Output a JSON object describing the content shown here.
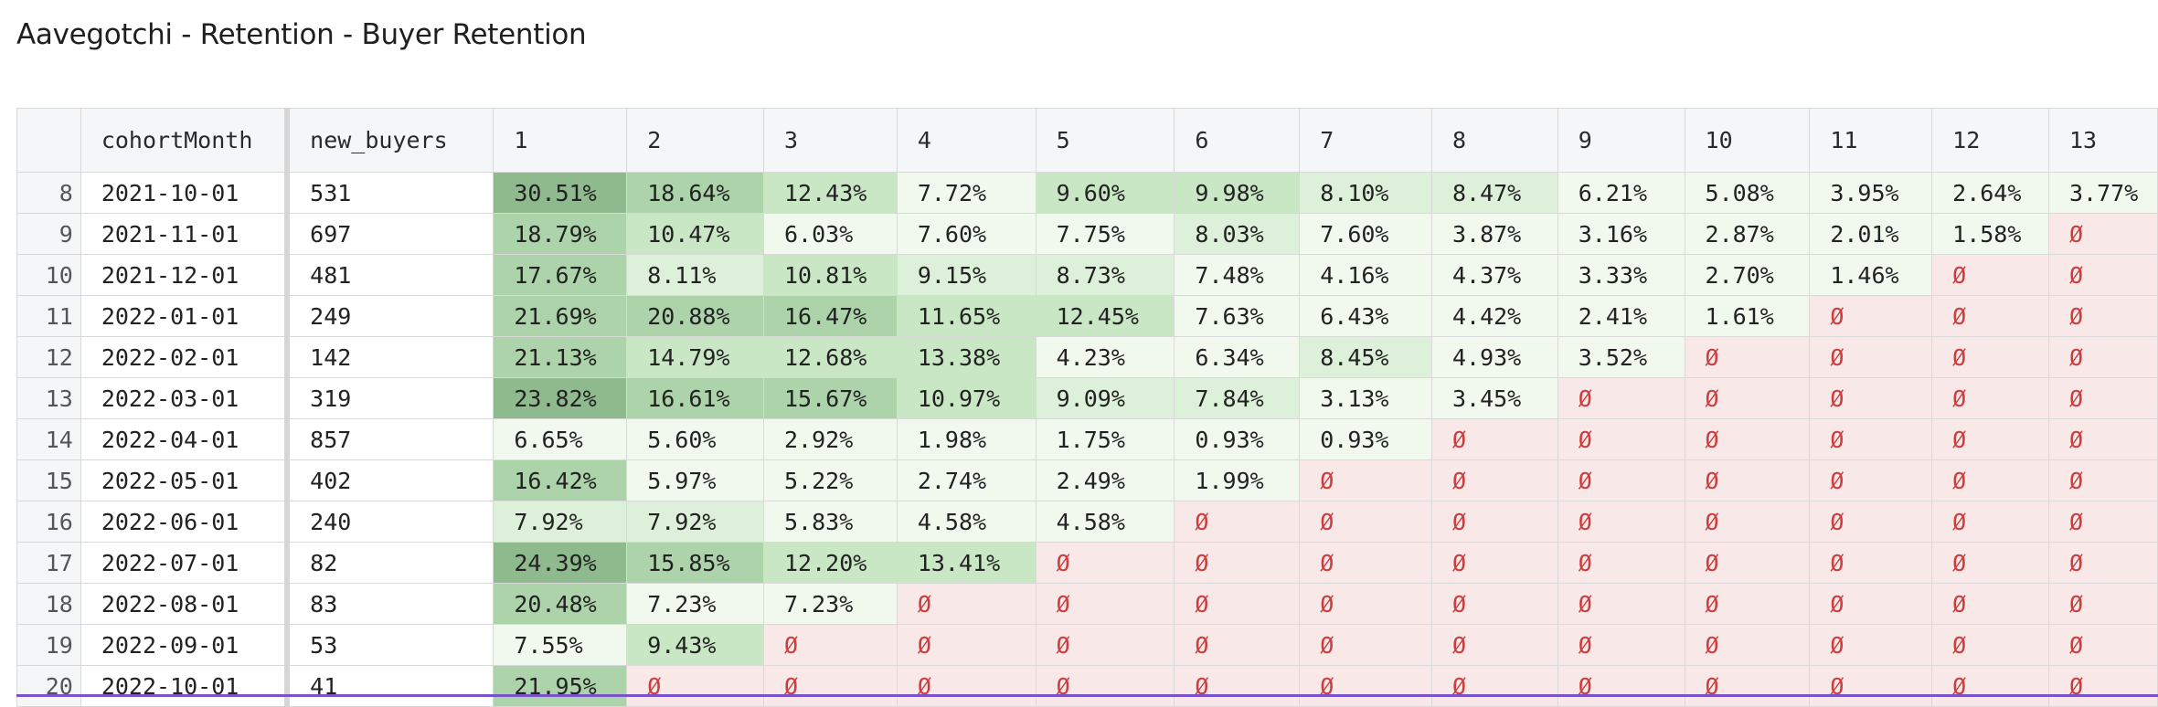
{
  "title": "Aavegotchi - Retention - Buyer Retention",
  "columns": [
    "",
    "cohortMonth",
    "new_buyers",
    "1",
    "2",
    "3",
    "4",
    "5",
    "6",
    "7",
    "8",
    "9",
    "10",
    "11",
    "12",
    "13"
  ],
  "null_symbol": "Ø",
  "rows": [
    {
      "n": "8",
      "month": "2021-10-01",
      "buyers": "531",
      "vals": [
        "30.51%",
        "18.64%",
        "12.43%",
        "7.72%",
        "9.60%",
        "9.98%",
        "8.10%",
        "8.47%",
        "6.21%",
        "5.08%",
        "3.95%",
        "2.64%",
        "3.77%"
      ]
    },
    {
      "n": "9",
      "month": "2021-11-01",
      "buyers": "697",
      "vals": [
        "18.79%",
        "10.47%",
        "6.03%",
        "7.60%",
        "7.75%",
        "8.03%",
        "7.60%",
        "3.87%",
        "3.16%",
        "2.87%",
        "2.01%",
        "1.58%",
        null
      ]
    },
    {
      "n": "10",
      "month": "2021-12-01",
      "buyers": "481",
      "vals": [
        "17.67%",
        "8.11%",
        "10.81%",
        "9.15%",
        "8.73%",
        "7.48%",
        "4.16%",
        "4.37%",
        "3.33%",
        "2.70%",
        "1.46%",
        null,
        null
      ]
    },
    {
      "n": "11",
      "month": "2022-01-01",
      "buyers": "249",
      "vals": [
        "21.69%",
        "20.88%",
        "16.47%",
        "11.65%",
        "12.45%",
        "7.63%",
        "6.43%",
        "4.42%",
        "2.41%",
        "1.61%",
        null,
        null,
        null
      ]
    },
    {
      "n": "12",
      "month": "2022-02-01",
      "buyers": "142",
      "vals": [
        "21.13%",
        "14.79%",
        "12.68%",
        "13.38%",
        "4.23%",
        "6.34%",
        "8.45%",
        "4.93%",
        "3.52%",
        null,
        null,
        null,
        null
      ]
    },
    {
      "n": "13",
      "month": "2022-03-01",
      "buyers": "319",
      "vals": [
        "23.82%",
        "16.61%",
        "15.67%",
        "10.97%",
        "9.09%",
        "7.84%",
        "3.13%",
        "3.45%",
        null,
        null,
        null,
        null,
        null
      ]
    },
    {
      "n": "14",
      "month": "2022-04-01",
      "buyers": "857",
      "vals": [
        "6.65%",
        "5.60%",
        "2.92%",
        "1.98%",
        "1.75%",
        "0.93%",
        "0.93%",
        null,
        null,
        null,
        null,
        null,
        null
      ]
    },
    {
      "n": "15",
      "month": "2022-05-01",
      "buyers": "402",
      "vals": [
        "16.42%",
        "5.97%",
        "5.22%",
        "2.74%",
        "2.49%",
        "1.99%",
        null,
        null,
        null,
        null,
        null,
        null,
        null
      ]
    },
    {
      "n": "16",
      "month": "2022-06-01",
      "buyers": "240",
      "vals": [
        "7.92%",
        "7.92%",
        "5.83%",
        "4.58%",
        "4.58%",
        null,
        null,
        null,
        null,
        null,
        null,
        null,
        null
      ]
    },
    {
      "n": "17",
      "month": "2022-07-01",
      "buyers": "82",
      "vals": [
        "24.39%",
        "15.85%",
        "12.20%",
        "13.41%",
        null,
        null,
        null,
        null,
        null,
        null,
        null,
        null,
        null
      ]
    },
    {
      "n": "18",
      "month": "2022-08-01",
      "buyers": "83",
      "vals": [
        "20.48%",
        "7.23%",
        "7.23%",
        null,
        null,
        null,
        null,
        null,
        null,
        null,
        null,
        null,
        null
      ]
    },
    {
      "n": "19",
      "month": "2022-09-01",
      "buyers": "53",
      "vals": [
        "7.55%",
        "9.43%",
        null,
        null,
        null,
        null,
        null,
        null,
        null,
        null,
        null,
        null,
        null
      ]
    },
    {
      "n": "20",
      "month": "2022-10-01",
      "buyers": "41",
      "vals": [
        "21.95%",
        null,
        null,
        null,
        null,
        null,
        null,
        null,
        null,
        null,
        null,
        null,
        null
      ]
    }
  ],
  "colors": {
    "heat_strong": "#8fba8d",
    "heat_high": "#acd3a9",
    "heat_mid": "#c9e6c5",
    "heat_low": "#ddf0d9",
    "heat_min": "#f1f9ef",
    "null_bg": "#f8e8e8",
    "null_text": "#cc3d3d"
  }
}
